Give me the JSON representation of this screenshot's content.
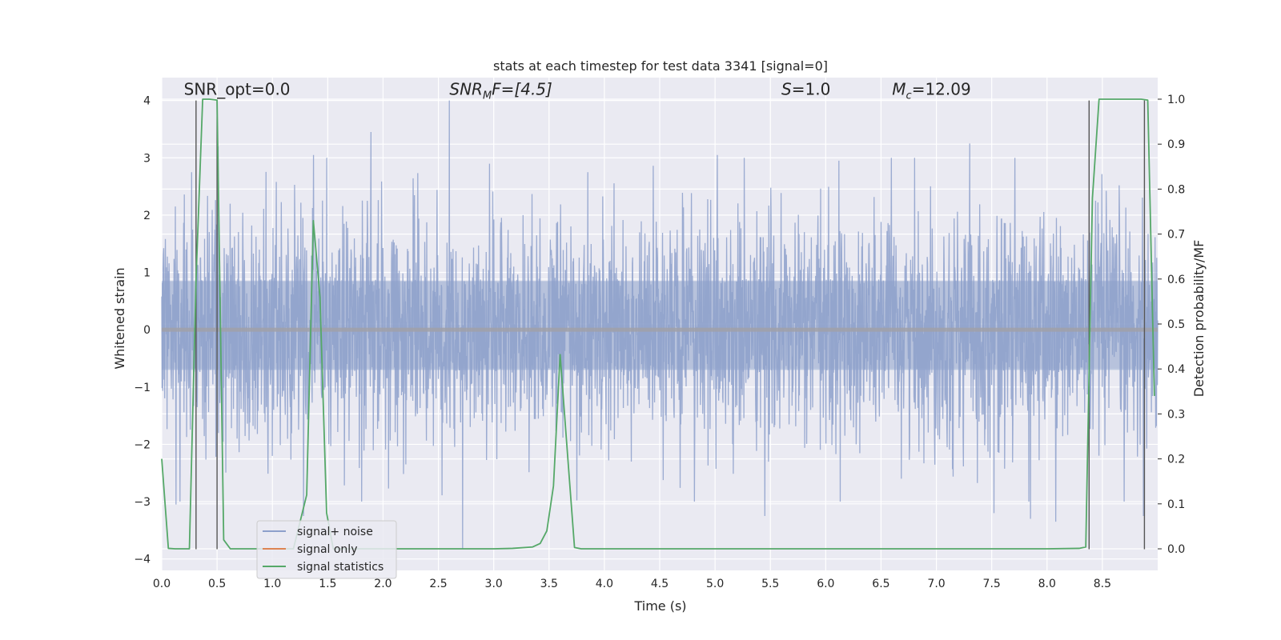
{
  "chart_data": {
    "type": "line",
    "title": "stats at each timestep for test data 3341 [signal=0]",
    "xlabel": "Time (s)",
    "ylabel": "Whitened strain",
    "ylabel_right": "Detection probability/MF",
    "xlim": [
      0.0,
      9.0
    ],
    "ylim": [
      -4.2,
      4.4
    ],
    "ylim_right": [
      -0.048,
      1.048
    ],
    "x_ticks": [
      0.0,
      0.5,
      1.0,
      1.5,
      2.0,
      2.5,
      3.0,
      3.5,
      4.0,
      4.5,
      5.0,
      5.5,
      6.0,
      6.5,
      7.0,
      7.5,
      8.0,
      8.5
    ],
    "x_tick_labels": [
      "0.0",
      "0.5",
      "1.0",
      "1.5",
      "2.0",
      "2.5",
      "3.0",
      "3.5",
      "4.0",
      "4.5",
      "5.0",
      "5.5",
      "6.0",
      "6.5",
      "7.0",
      "7.5",
      "8.0",
      "8.5"
    ],
    "y_ticks": [
      -4,
      -3,
      -2,
      -1,
      0,
      1,
      2,
      3,
      4
    ],
    "y_tick_labels": [
      "−4",
      "−3",
      "−2",
      "−1",
      "0",
      "1",
      "2",
      "3",
      "4"
    ],
    "y_ticks_right": [
      0.0,
      0.1,
      0.2,
      0.3,
      0.4,
      0.5,
      0.6,
      0.7,
      0.8,
      0.9,
      1.0
    ],
    "y_tick_labels_right": [
      "0.0",
      "0.1",
      "0.2",
      "0.3",
      "0.4",
      "0.5",
      "0.6",
      "0.7",
      "0.8",
      "0.9",
      "1.0"
    ],
    "grid": true,
    "legend_position": "lower-left",
    "annotations": [
      {
        "id": "snr-opt",
        "text": "SNR_opt=0.0",
        "x": 0.2,
        "y": 4.1
      },
      {
        "id": "snr-mf",
        "text": "SNR",
        "sub": "M",
        "tail": "F=[4.5]",
        "x": 2.6,
        "y": 4.1
      },
      {
        "id": "s-value",
        "text": "S",
        "tail": "=1.0",
        "x": 5.6,
        "y": 4.1
      },
      {
        "id": "mc-value",
        "text": "M",
        "sub": "c",
        "tail": "=12.09",
        "x": 6.6,
        "y": 4.1
      }
    ],
    "vertical_markers": [
      {
        "x": 0.31,
        "y_top": 4.0,
        "y_bottom": -3.83
      },
      {
        "x": 0.5,
        "y_top": 4.0,
        "y_bottom": -3.83
      },
      {
        "x": 8.38,
        "y_top": 4.0,
        "y_bottom": -3.83
      },
      {
        "x": 8.88,
        "y_top": 4.0,
        "y_bottom": -3.83
      }
    ],
    "series": [
      {
        "name": "signal+ noise",
        "color": "#8da0cb",
        "axis": "left",
        "style": "noise",
        "t_start": 0.0,
        "t_end": 9.0,
        "n_samples": 3000,
        "sigma": 1.0,
        "spikes": [
          {
            "x": 0.51,
            "y": 3.2
          },
          {
            "x": 1.89,
            "y": 3.45
          },
          {
            "x": 2.6,
            "y": 4.0
          },
          {
            "x": 2.72,
            "y": -3.83
          },
          {
            "x": 0.27,
            "y": 2.75
          },
          {
            "x": 1.37,
            "y": 3.05
          },
          {
            "x": 7.3,
            "y": 3.25
          },
          {
            "x": 5.02,
            "y": 3.05
          },
          {
            "x": 8.08,
            "y": -3.35
          },
          {
            "x": 1.28,
            "y": -3.25
          },
          {
            "x": 5.45,
            "y": -3.25
          },
          {
            "x": 7.85,
            "y": -3.3
          },
          {
            "x": 7.52,
            "y": -3.2
          },
          {
            "x": 8.87,
            "y": -3.25
          },
          {
            "x": 0.13,
            "y": -3.05
          },
          {
            "x": 6.12,
            "y": 2.95
          }
        ]
      },
      {
        "name": "signal only",
        "color": "#dd8452",
        "axis": "left",
        "x": [
          0.0,
          9.0
        ],
        "y": [
          0.0,
          0.0
        ]
      },
      {
        "name": "signal statistics",
        "color": "#55a868",
        "axis": "right",
        "x": [
          0.0,
          0.06,
          0.12,
          0.18,
          0.25,
          0.31,
          0.37,
          0.43,
          0.5,
          0.56,
          0.62,
          0.68,
          0.75,
          1.19,
          1.31,
          1.37,
          1.43,
          1.49,
          1.55,
          1.62,
          2.0,
          3.0,
          3.17,
          3.35,
          3.42,
          3.48,
          3.54,
          3.6,
          3.67,
          3.73,
          3.79,
          4.0,
          5.0,
          6.0,
          7.0,
          8.0,
          8.29,
          8.35,
          8.41,
          8.47,
          8.54,
          8.6,
          8.66,
          8.72,
          8.78,
          8.85,
          8.91,
          8.97
        ],
        "y": [
          0.2,
          0.001,
          0.0,
          0.0,
          0.0,
          0.6,
          1.0,
          1.0,
          0.998,
          0.02,
          0.0,
          0.0,
          0.0,
          0.0,
          0.12,
          0.73,
          0.56,
          0.08,
          0.0,
          0.0,
          0.0,
          0.0,
          0.001,
          0.004,
          0.012,
          0.04,
          0.14,
          0.432,
          0.2,
          0.003,
          0.0,
          0.0,
          0.0,
          0.0,
          0.0,
          0.0,
          0.001,
          0.004,
          0.78,
          1.0,
          1.0,
          1.0,
          1.0,
          1.0,
          1.0,
          1.0,
          0.998,
          0.34
        ]
      }
    ]
  }
}
